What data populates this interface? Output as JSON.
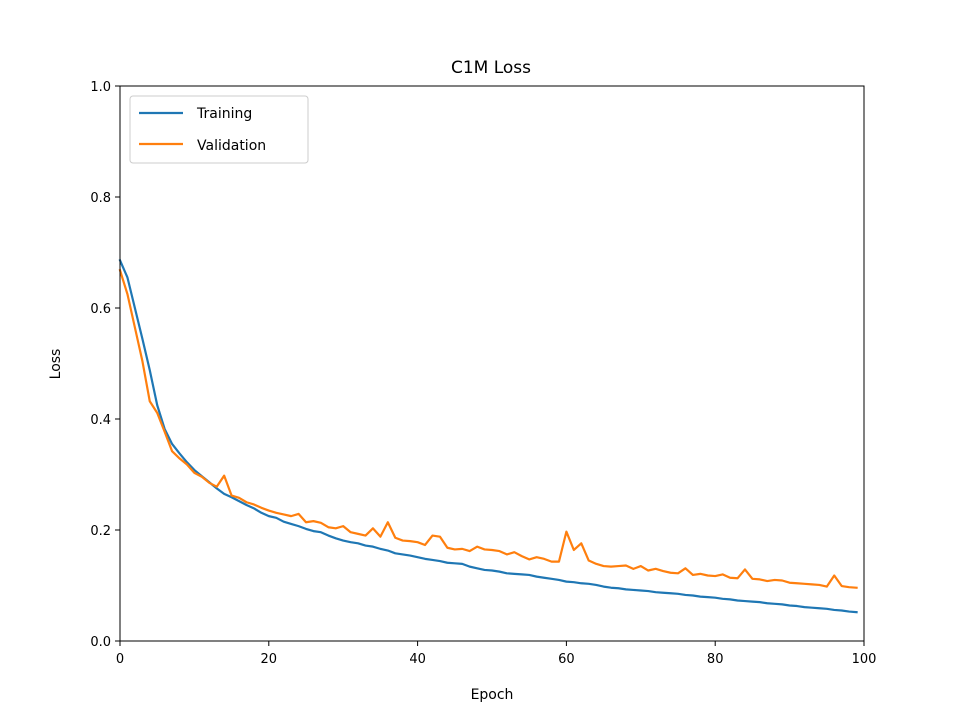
{
  "chart_data": {
    "type": "line",
    "title": "C1M Loss",
    "xlabel": "Epoch",
    "ylabel": "Loss",
    "xlim": [
      0,
      100
    ],
    "ylim": [
      0,
      1.0
    ],
    "xticks": [
      "0",
      "20",
      "40",
      "60",
      "80",
      "100"
    ],
    "yticks": [
      "0.0",
      "0.2",
      "0.4",
      "0.6",
      "0.8",
      "1.0"
    ],
    "legend_position": "top-left",
    "grid": false,
    "series": [
      {
        "name": "Training",
        "color": "#1f77b4",
        "x": [
          0,
          1,
          2,
          3,
          4,
          5,
          6,
          7,
          8,
          9,
          10,
          11,
          12,
          13,
          14,
          15,
          16,
          17,
          18,
          19,
          20,
          21,
          22,
          23,
          24,
          25,
          26,
          27,
          28,
          29,
          30,
          31,
          32,
          33,
          34,
          35,
          36,
          37,
          38,
          39,
          40,
          41,
          42,
          43,
          44,
          45,
          46,
          47,
          48,
          49,
          50,
          51,
          52,
          53,
          54,
          55,
          56,
          57,
          58,
          59,
          60,
          61,
          62,
          63,
          64,
          65,
          66,
          67,
          68,
          69,
          70,
          71,
          72,
          73,
          74,
          75,
          76,
          77,
          78,
          79,
          80,
          81,
          82,
          83,
          84,
          85,
          86,
          87,
          88,
          89,
          90,
          91,
          92,
          93,
          94,
          95,
          96,
          97,
          98,
          99
        ],
        "values": [
          0.686,
          0.655,
          0.6,
          0.545,
          0.488,
          0.425,
          0.382,
          0.355,
          0.338,
          0.322,
          0.308,
          0.297,
          0.286,
          0.275,
          0.265,
          0.259,
          0.252,
          0.245,
          0.239,
          0.231,
          0.225,
          0.222,
          0.215,
          0.211,
          0.207,
          0.202,
          0.198,
          0.196,
          0.19,
          0.185,
          0.181,
          0.178,
          0.176,
          0.172,
          0.17,
          0.166,
          0.163,
          0.158,
          0.156,
          0.154,
          0.151,
          0.148,
          0.146,
          0.144,
          0.141,
          0.14,
          0.139,
          0.134,
          0.131,
          0.128,
          0.127,
          0.125,
          0.122,
          0.121,
          0.12,
          0.119,
          0.116,
          0.114,
          0.112,
          0.11,
          0.107,
          0.106,
          0.104,
          0.103,
          0.101,
          0.098,
          0.096,
          0.095,
          0.093,
          0.092,
          0.091,
          0.09,
          0.088,
          0.087,
          0.086,
          0.085,
          0.083,
          0.082,
          0.08,
          0.079,
          0.078,
          0.076,
          0.075,
          0.073,
          0.072,
          0.071,
          0.07,
          0.068,
          0.067,
          0.066,
          0.064,
          0.063,
          0.061,
          0.06,
          0.059,
          0.058,
          0.056,
          0.055,
          0.053,
          0.052
        ]
      },
      {
        "name": "Validation",
        "color": "#ff7f0e",
        "x": [
          0,
          1,
          2,
          3,
          4,
          5,
          6,
          7,
          8,
          9,
          10,
          11,
          12,
          13,
          14,
          15,
          16,
          17,
          18,
          19,
          20,
          21,
          22,
          23,
          24,
          25,
          26,
          27,
          28,
          29,
          30,
          31,
          32,
          33,
          34,
          35,
          36,
          37,
          38,
          39,
          40,
          41,
          42,
          43,
          44,
          45,
          46,
          47,
          48,
          49,
          50,
          51,
          52,
          53,
          54,
          55,
          56,
          57,
          58,
          59,
          60,
          61,
          62,
          63,
          64,
          65,
          66,
          67,
          68,
          69,
          70,
          71,
          72,
          73,
          74,
          75,
          76,
          77,
          78,
          79,
          80,
          81,
          82,
          83,
          84,
          85,
          86,
          87,
          88,
          89,
          90,
          91,
          92,
          93,
          94,
          95,
          96,
          97,
          98,
          99
        ],
        "values": [
          0.668,
          0.625,
          0.565,
          0.505,
          0.432,
          0.411,
          0.377,
          0.342,
          0.329,
          0.318,
          0.303,
          0.296,
          0.285,
          0.278,
          0.298,
          0.262,
          0.258,
          0.25,
          0.246,
          0.24,
          0.235,
          0.231,
          0.228,
          0.225,
          0.229,
          0.214,
          0.216,
          0.213,
          0.205,
          0.203,
          0.207,
          0.196,
          0.193,
          0.19,
          0.203,
          0.188,
          0.214,
          0.186,
          0.181,
          0.18,
          0.178,
          0.173,
          0.19,
          0.188,
          0.168,
          0.165,
          0.166,
          0.162,
          0.17,
          0.165,
          0.164,
          0.162,
          0.156,
          0.16,
          0.153,
          0.147,
          0.151,
          0.148,
          0.143,
          0.143,
          0.197,
          0.164,
          0.176,
          0.145,
          0.139,
          0.135,
          0.134,
          0.135,
          0.136,
          0.13,
          0.135,
          0.127,
          0.13,
          0.126,
          0.123,
          0.122,
          0.131,
          0.119,
          0.121,
          0.118,
          0.117,
          0.12,
          0.114,
          0.113,
          0.129,
          0.112,
          0.111,
          0.108,
          0.11,
          0.109,
          0.105,
          0.104,
          0.103,
          0.102,
          0.101,
          0.098,
          0.118,
          0.099,
          0.097,
          0.096
        ]
      }
    ]
  }
}
